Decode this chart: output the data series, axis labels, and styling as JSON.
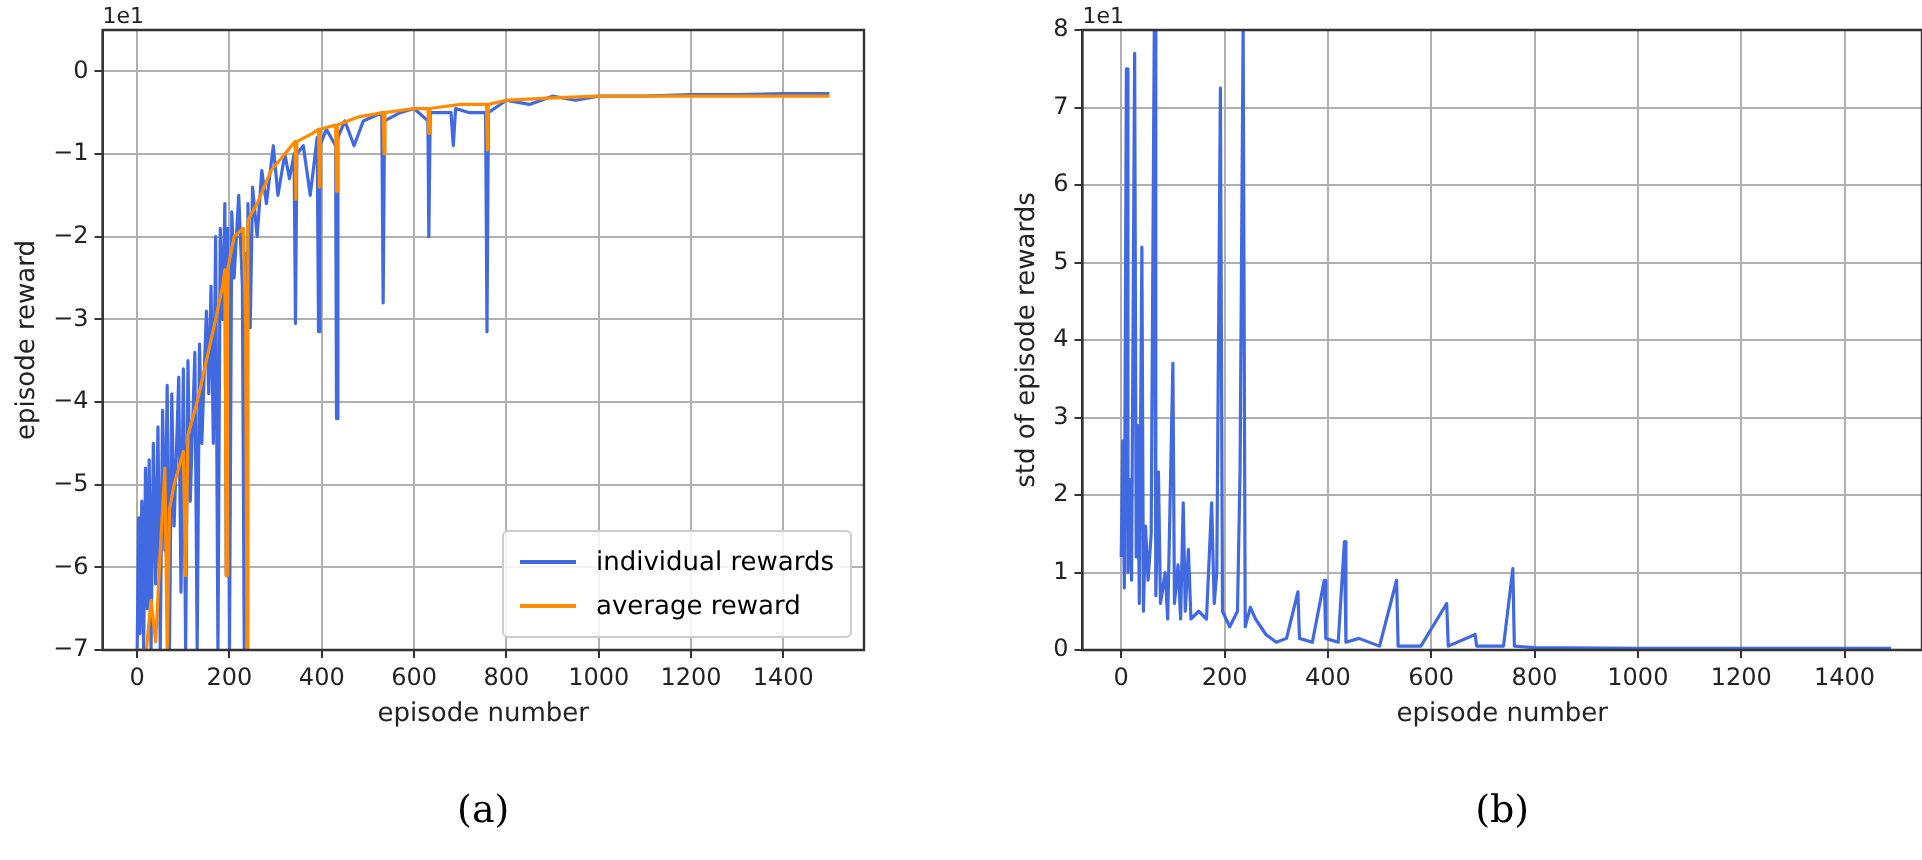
{
  "chart_data": [
    {
      "type": "line",
      "xlabel": "episode number",
      "ylabel": "episode reward",
      "annotations": [
        "1e1",
        "(a)"
      ],
      "xlim": [
        -75,
        1575
      ],
      "ylim": [
        -7,
        0.5
      ],
      "xticks": [
        0,
        200,
        400,
        600,
        800,
        1000,
        1200,
        1400
      ],
      "yticks": [
        -7,
        -6,
        -5,
        -4,
        -3,
        -2,
        -1,
        0
      ],
      "grid": true,
      "legend": "bottom right",
      "series": [
        {
          "name": "individual rewards",
          "color": "#4169e1",
          "x": [
            0,
            3,
            6,
            10,
            14,
            18,
            22,
            26,
            30,
            35,
            40,
            45,
            50,
            55,
            60,
            65,
            70,
            75,
            80,
            90,
            95,
            100,
            105,
            110,
            115,
            125,
            130,
            135,
            140,
            150,
            155,
            160,
            165,
            170,
            175,
            180,
            185,
            190,
            193,
            196,
            200,
            205,
            210,
            220,
            228,
            232,
            236,
            240,
            245,
            250,
            260,
            270,
            280,
            295,
            305,
            320,
            330,
            340,
            343,
            346,
            360,
            375,
            390,
            393,
            396,
            410,
            430,
            432,
            435,
            450,
            470,
            490,
            530,
            533,
            536,
            570,
            600,
            630,
            632,
            635,
            680,
            685,
            690,
            720,
            755,
            758,
            761,
            800,
            850,
            900,
            950,
            1000,
            1100,
            1200,
            1300,
            1400,
            1500
          ],
          "values": [
            -7,
            -5.4,
            -6.8,
            -5.2,
            -7,
            -4.8,
            -6.5,
            -4.7,
            -7,
            -4.5,
            -6.2,
            -4.3,
            -7,
            -4.1,
            -5.8,
            -3.8,
            -7,
            -3.9,
            -5.5,
            -3.7,
            -6.3,
            -3.6,
            -7,
            -3.5,
            -5.2,
            -3.4,
            -7,
            -3.3,
            -4.5,
            -2.9,
            -3.9,
            -2.6,
            -4.5,
            -2,
            -7,
            -1.9,
            -3,
            -1.6,
            -6.1,
            -1.9,
            -7,
            -1.7,
            -2.5,
            -1.5,
            -2.6,
            -7,
            -2.2,
            -1.6,
            -3.1,
            -1.4,
            -2,
            -1.2,
            -1.6,
            -0.9,
            -1.5,
            -1,
            -1.3,
            -1,
            -3.05,
            -1,
            -0.9,
            -1.5,
            -0.8,
            -3.15,
            -0.9,
            -0.7,
            -0.9,
            -4.2,
            -0.8,
            -0.6,
            -0.9,
            -0.6,
            -0.5,
            -2.8,
            -0.6,
            -0.5,
            -0.45,
            -0.6,
            -2,
            -0.5,
            -0.5,
            -0.9,
            -0.45,
            -0.5,
            -0.5,
            -3.15,
            -0.5,
            -0.35,
            -0.4,
            -0.3,
            -0.35,
            -0.3,
            -0.3,
            -0.28,
            -0.28,
            -0.27,
            -0.27
          ]
        },
        {
          "name": "average reward",
          "color": "#ff8c00",
          "x": [
            0,
            20,
            30,
            40,
            50,
            60,
            65,
            70,
            80,
            90,
            100,
            105,
            110,
            130,
            150,
            170,
            185,
            190,
            193,
            196,
            210,
            230,
            235,
            238,
            240,
            260,
            290,
            320,
            342,
            344,
            346,
            380,
            393,
            395,
            397,
            430,
            432,
            434,
            480,
            533,
            535,
            537,
            600,
            630,
            632,
            634,
            700,
            757,
            759,
            761,
            800,
            900,
            1000,
            1200,
            1500
          ],
          "values": [
            -7,
            -7,
            -6.4,
            -6.9,
            -5.8,
            -4.8,
            -7,
            -5.3,
            -5,
            -4.8,
            -4.6,
            -6.1,
            -4.4,
            -4,
            -3.5,
            -3,
            -2.6,
            -2.4,
            -6.1,
            -2.4,
            -2,
            -1.9,
            -3.1,
            -7,
            -1.8,
            -1.6,
            -1.2,
            -1,
            -0.85,
            -1.55,
            -0.85,
            -0.75,
            -0.7,
            -1.4,
            -0.7,
            -0.65,
            -1.45,
            -0.65,
            -0.55,
            -0.5,
            -1,
            -0.5,
            -0.45,
            -0.45,
            -0.75,
            -0.45,
            -0.4,
            -0.4,
            -0.95,
            -0.4,
            -0.35,
            -0.32,
            -0.3,
            -0.3,
            -0.3
          ]
        }
      ]
    },
    {
      "type": "line",
      "xlabel": "episode number",
      "ylabel": "std of episode rewards",
      "annotations": [
        "1e1",
        "(b)"
      ],
      "xlim": [
        -75,
        1550
      ],
      "ylim": [
        0,
        8
      ],
      "xticks": [
        0,
        200,
        400,
        600,
        800,
        1000,
        1200,
        1400
      ],
      "yticks": [
        0,
        1,
        2,
        3,
        4,
        5,
        6,
        7,
        8
      ],
      "grid": true,
      "series": [
        {
          "color": "#4169e1",
          "x": [
            0,
            3,
            6,
            10,
            13,
            17,
            20,
            26,
            29,
            32,
            35,
            40,
            43,
            47,
            52,
            58,
            64,
            67,
            72,
            76,
            85,
            90,
            100,
            103,
            110,
            115,
            120,
            124,
            130,
            135,
            150,
            165,
            175,
            180,
            185,
            192,
            196,
            210,
            225,
            230,
            236,
            240,
            250,
            260,
            280,
            300,
            320,
            342,
            345,
            370,
            393,
            396,
            420,
            432,
            435,
            460,
            500,
            533,
            536,
            580,
            630,
            633,
            685,
            688,
            740,
            758,
            761,
            800,
            1000,
            1200,
            1490
          ],
          "values": [
            1.2,
            2.7,
            0.8,
            7.5,
            1,
            2.2,
            0.9,
            7.7,
            1.2,
            2.9,
            0.6,
            5.2,
            0.5,
            1.6,
            0.9,
            1.5,
            8,
            0.7,
            2.3,
            0.6,
            1,
            0.4,
            3.7,
            0.6,
            1.1,
            0.4,
            1.9,
            0.5,
            1.3,
            0.4,
            0.5,
            0.4,
            1.9,
            0.6,
            1,
            7.25,
            0.5,
            0.3,
            0.5,
            2.3,
            8,
            0.3,
            0.55,
            0.4,
            0.2,
            0.1,
            0.15,
            0.75,
            0.15,
            0.1,
            0.9,
            0.15,
            0.1,
            1.4,
            0.1,
            0.15,
            0.05,
            0.9,
            0.05,
            0.05,
            0.6,
            0.05,
            0.2,
            0.05,
            0.05,
            1.05,
            0.05,
            0.03,
            0.02,
            0.02,
            0.02
          ]
        }
      ]
    }
  ]
}
